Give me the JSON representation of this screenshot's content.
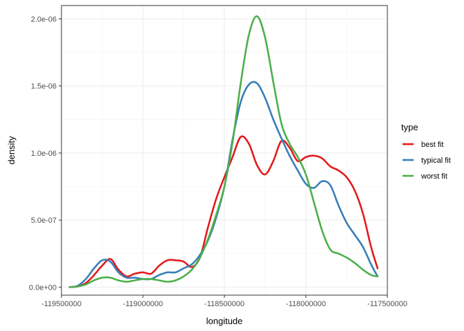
{
  "chart_data": {
    "type": "line",
    "xlabel": "longitude",
    "ylabel": "density",
    "xlim": [
      -119500000,
      -117500000
    ],
    "ylim": [
      -6e-08,
      2.1e-06
    ],
    "x_ticks": [
      -119500000,
      -119000000,
      -118500000,
      -118000000,
      -117500000
    ],
    "x_tick_labels": [
      "-119500000",
      "-119000000",
      "-118500000",
      "-118000000",
      "-117500000"
    ],
    "x_minor_ticks": [
      -119250000,
      -118750000,
      -118250000,
      -117750000
    ],
    "y_ticks": [
      0,
      5e-07,
      1e-06,
      1.5e-06,
      2e-06
    ],
    "y_tick_labels": [
      "0.0e+00",
      "5.0e-07",
      "1.0e-06",
      "1.5e-06",
      "2.0e-06"
    ],
    "y_minor_ticks": [
      2.5e-07,
      7.5e-07,
      1.25e-06,
      1.75e-06
    ],
    "grid": true,
    "legend": {
      "title": "type",
      "position": "right"
    },
    "series": [
      {
        "name": "best fit",
        "color": "#E41A1C",
        "x": [
          -119450000,
          -119400000,
          -119350000,
          -119300000,
          -119250000,
          -119200000,
          -119150000,
          -119100000,
          -119050000,
          -119000000,
          -118950000,
          -118900000,
          -118850000,
          -118800000,
          -118750000,
          -118700000,
          -118650000,
          -118600000,
          -118550000,
          -118500000,
          -118450000,
          -118400000,
          -118350000,
          -118300000,
          -118250000,
          -118200000,
          -118150000,
          -118100000,
          -118050000,
          -118000000,
          -117950000,
          -117900000,
          -117850000,
          -117800000,
          -117750000,
          -117700000,
          -117650000,
          -117600000,
          -117560000
        ],
        "y": [
          0,
          5e-09,
          3e-08,
          9e-08,
          1.6e-07,
          2.1e-07,
          1.3e-07,
          8e-08,
          1e-07,
          1.1e-07,
          1e-07,
          1.6e-07,
          2e-07,
          2e-07,
          1.9e-07,
          1.5e-07,
          2.2e-07,
          4.5e-07,
          6.6e-07,
          8.2e-07,
          9.7e-07,
          1.12e-06,
          1.07e-06,
          9.1e-07,
          8.4e-07,
          9.4e-07,
          1.09e-06,
          1.04e-06,
          9.4e-07,
          9.7e-07,
          9.8e-07,
          9.6e-07,
          9e-07,
          8.7e-07,
          8.2e-07,
          7.2e-07,
          5.5e-07,
          3e-07,
          1.4e-07
        ]
      },
      {
        "name": "typical fit",
        "color": "#377EB8",
        "x": [
          -119450000,
          -119400000,
          -119350000,
          -119300000,
          -119250000,
          -119200000,
          -119150000,
          -119100000,
          -119050000,
          -119000000,
          -118950000,
          -118900000,
          -118850000,
          -118800000,
          -118750000,
          -118700000,
          -118650000,
          -118600000,
          -118550000,
          -118500000,
          -118450000,
          -118400000,
          -118350000,
          -118300000,
          -118250000,
          -118200000,
          -118150000,
          -118100000,
          -118050000,
          -118000000,
          -117950000,
          -117900000,
          -117850000,
          -117800000,
          -117750000,
          -117700000,
          -117650000,
          -117600000,
          -117560000
        ],
        "y": [
          0,
          1e-08,
          6e-08,
          1.4e-07,
          2e-07,
          1.9e-07,
          1.1e-07,
          7e-08,
          7e-08,
          6e-08,
          6e-08,
          9e-08,
          1.1e-07,
          1.1e-07,
          1.4e-07,
          1.7e-07,
          2.4e-07,
          3.5e-07,
          5.2e-07,
          7.5e-07,
          1.1e-06,
          1.38e-06,
          1.51e-06,
          1.52e-06,
          1.41e-06,
          1.25e-06,
          1.11e-06,
          9.8e-07,
          8.7e-07,
          7.7e-07,
          7.4e-07,
          7.9e-07,
          7.6e-07,
          6.1e-07,
          4.8e-07,
          3.9e-07,
          3e-07,
          1.7e-07,
          8e-08
        ]
      },
      {
        "name": "worst fit",
        "color": "#4DAF4A",
        "x": [
          -119450000,
          -119400000,
          -119350000,
          -119300000,
          -119250000,
          -119200000,
          -119150000,
          -119100000,
          -119050000,
          -119000000,
          -118950000,
          -118900000,
          -118850000,
          -118800000,
          -118750000,
          -118700000,
          -118650000,
          -118600000,
          -118550000,
          -118500000,
          -118450000,
          -118400000,
          -118350000,
          -118300000,
          -118250000,
          -118200000,
          -118150000,
          -118100000,
          -118050000,
          -118000000,
          -117950000,
          -117900000,
          -117850000,
          -117800000,
          -117750000,
          -117700000,
          -117650000,
          -117600000,
          -117560000
        ],
        "y": [
          0,
          5e-09,
          2e-08,
          5e-08,
          7e-08,
          7e-08,
          5e-08,
          4e-08,
          5e-08,
          6e-08,
          6e-08,
          5e-08,
          4e-08,
          5e-08,
          8e-08,
          1.3e-07,
          2.2e-07,
          3.6e-07,
          5.4e-07,
          7.5e-07,
          1.08e-06,
          1.52e-06,
          1.88e-06,
          2.02e-06,
          1.86e-06,
          1.53e-06,
          1.22e-06,
          1.07e-06,
          9.7e-07,
          8.4e-07,
          6.3e-07,
          4.2e-07,
          2.8e-07,
          2.5e-07,
          2.2e-07,
          1.8e-07,
          1.3e-07,
          9e-08,
          8e-08
        ]
      }
    ]
  }
}
